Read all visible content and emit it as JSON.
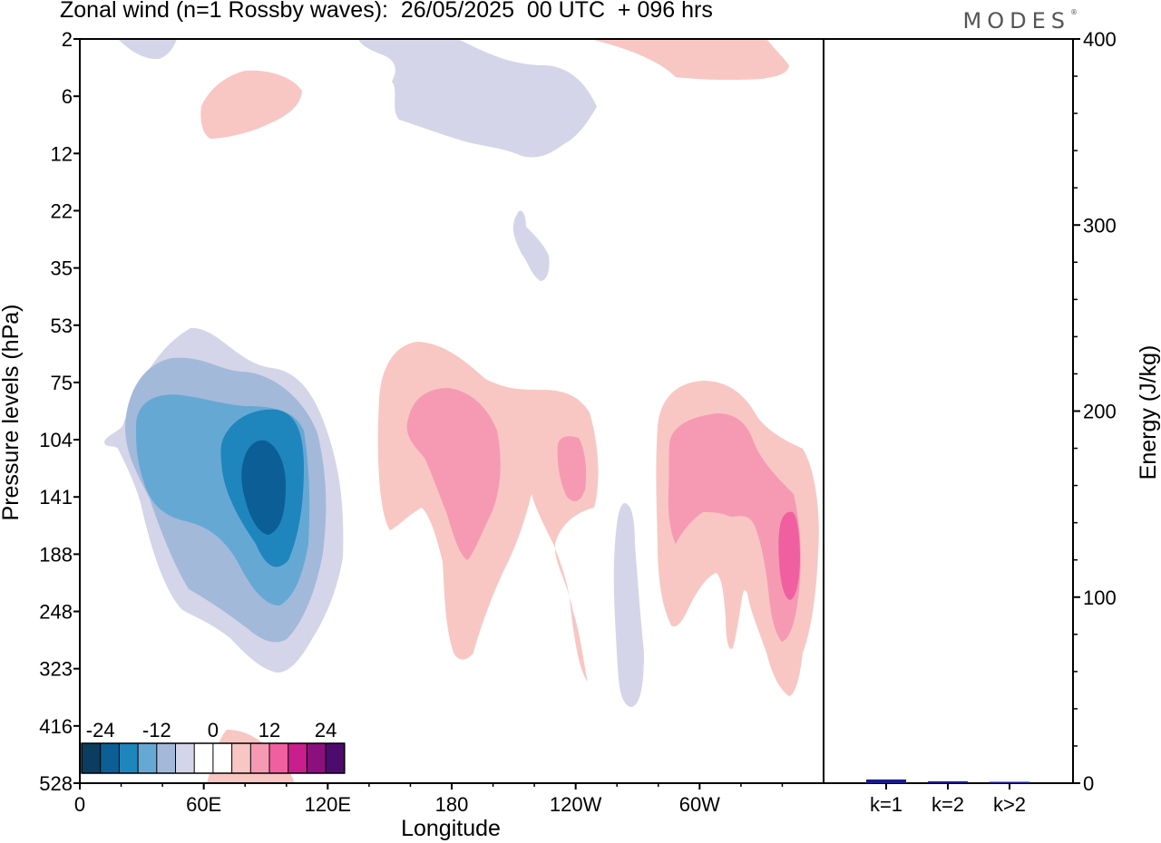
{
  "chart_data": [
    {
      "type": "heatmap",
      "title": "Zonal wind (n=1 Rossby waves):  26/05/2025  00 UTC  + 096 hrs",
      "xlabel": "Longitude",
      "ylabel": "Pressure levels (hPa)",
      "x_ticks": [
        "0",
        "60E",
        "120E",
        "180",
        "120W",
        "60W"
      ],
      "y_ticks": [
        "2",
        "6",
        "12",
        "22",
        "35",
        "53",
        "75",
        "104",
        "141",
        "188",
        "248",
        "323",
        "416",
        "528"
      ],
      "y_scale": "log (inverted, 2 at top)",
      "colorbar": {
        "tick_labels": [
          "-24",
          "-12",
          "0",
          "12",
          "24"
        ],
        "levels": [
          -30,
          -25,
          -20,
          -15,
          -10,
          -5,
          0,
          5,
          10,
          15,
          20,
          25,
          30
        ],
        "colors": [
          "#0a3d5e",
          "#0b5f96",
          "#1f85bd",
          "#66a8d4",
          "#a3b9da",
          "#d4d5e8",
          "#ffffff",
          "#ffffff",
          "#f8c7c3",
          "#f69ab3",
          "#f060a0",
          "#c81f8c",
          "#8c0f7e",
          "#4e0b6e"
        ]
      },
      "features": [
        {
          "sign": "negative",
          "max_magnitude": 25,
          "center_lon": 93,
          "center_hPa": 130
        },
        {
          "sign": "positive",
          "max_magnitude": 10,
          "center_lon": 180,
          "center_hPa": 120
        },
        {
          "sign": "positive",
          "max_magnitude": 10,
          "center_lon": 237,
          "center_hPa": 125
        },
        {
          "sign": "positive",
          "max_magnitude": 15,
          "center_lon": 345,
          "center_hPa": 185
        },
        {
          "sign": "negative",
          "max_magnitude": 5,
          "center_lon": 255,
          "center_hPa": 250
        },
        {
          "sign": "negative",
          "max_magnitude": 5,
          "center_lon": 215,
          "center_hPa": 5
        },
        {
          "sign": "positive",
          "max_magnitude": 5,
          "center_lon": 75,
          "center_hPa": 7
        }
      ]
    },
    {
      "type": "bar",
      "ylabel": "Energy (J/kg)",
      "categories": [
        "k=1",
        "k=2",
        "k>2"
      ],
      "values": [
        2,
        1,
        0.5
      ],
      "ylim": [
        0,
        400
      ],
      "y_ticks": [
        "0",
        "100",
        "200",
        "300",
        "400"
      ],
      "bar_color": "#1a1a8c"
    }
  ],
  "logo": "MODES"
}
